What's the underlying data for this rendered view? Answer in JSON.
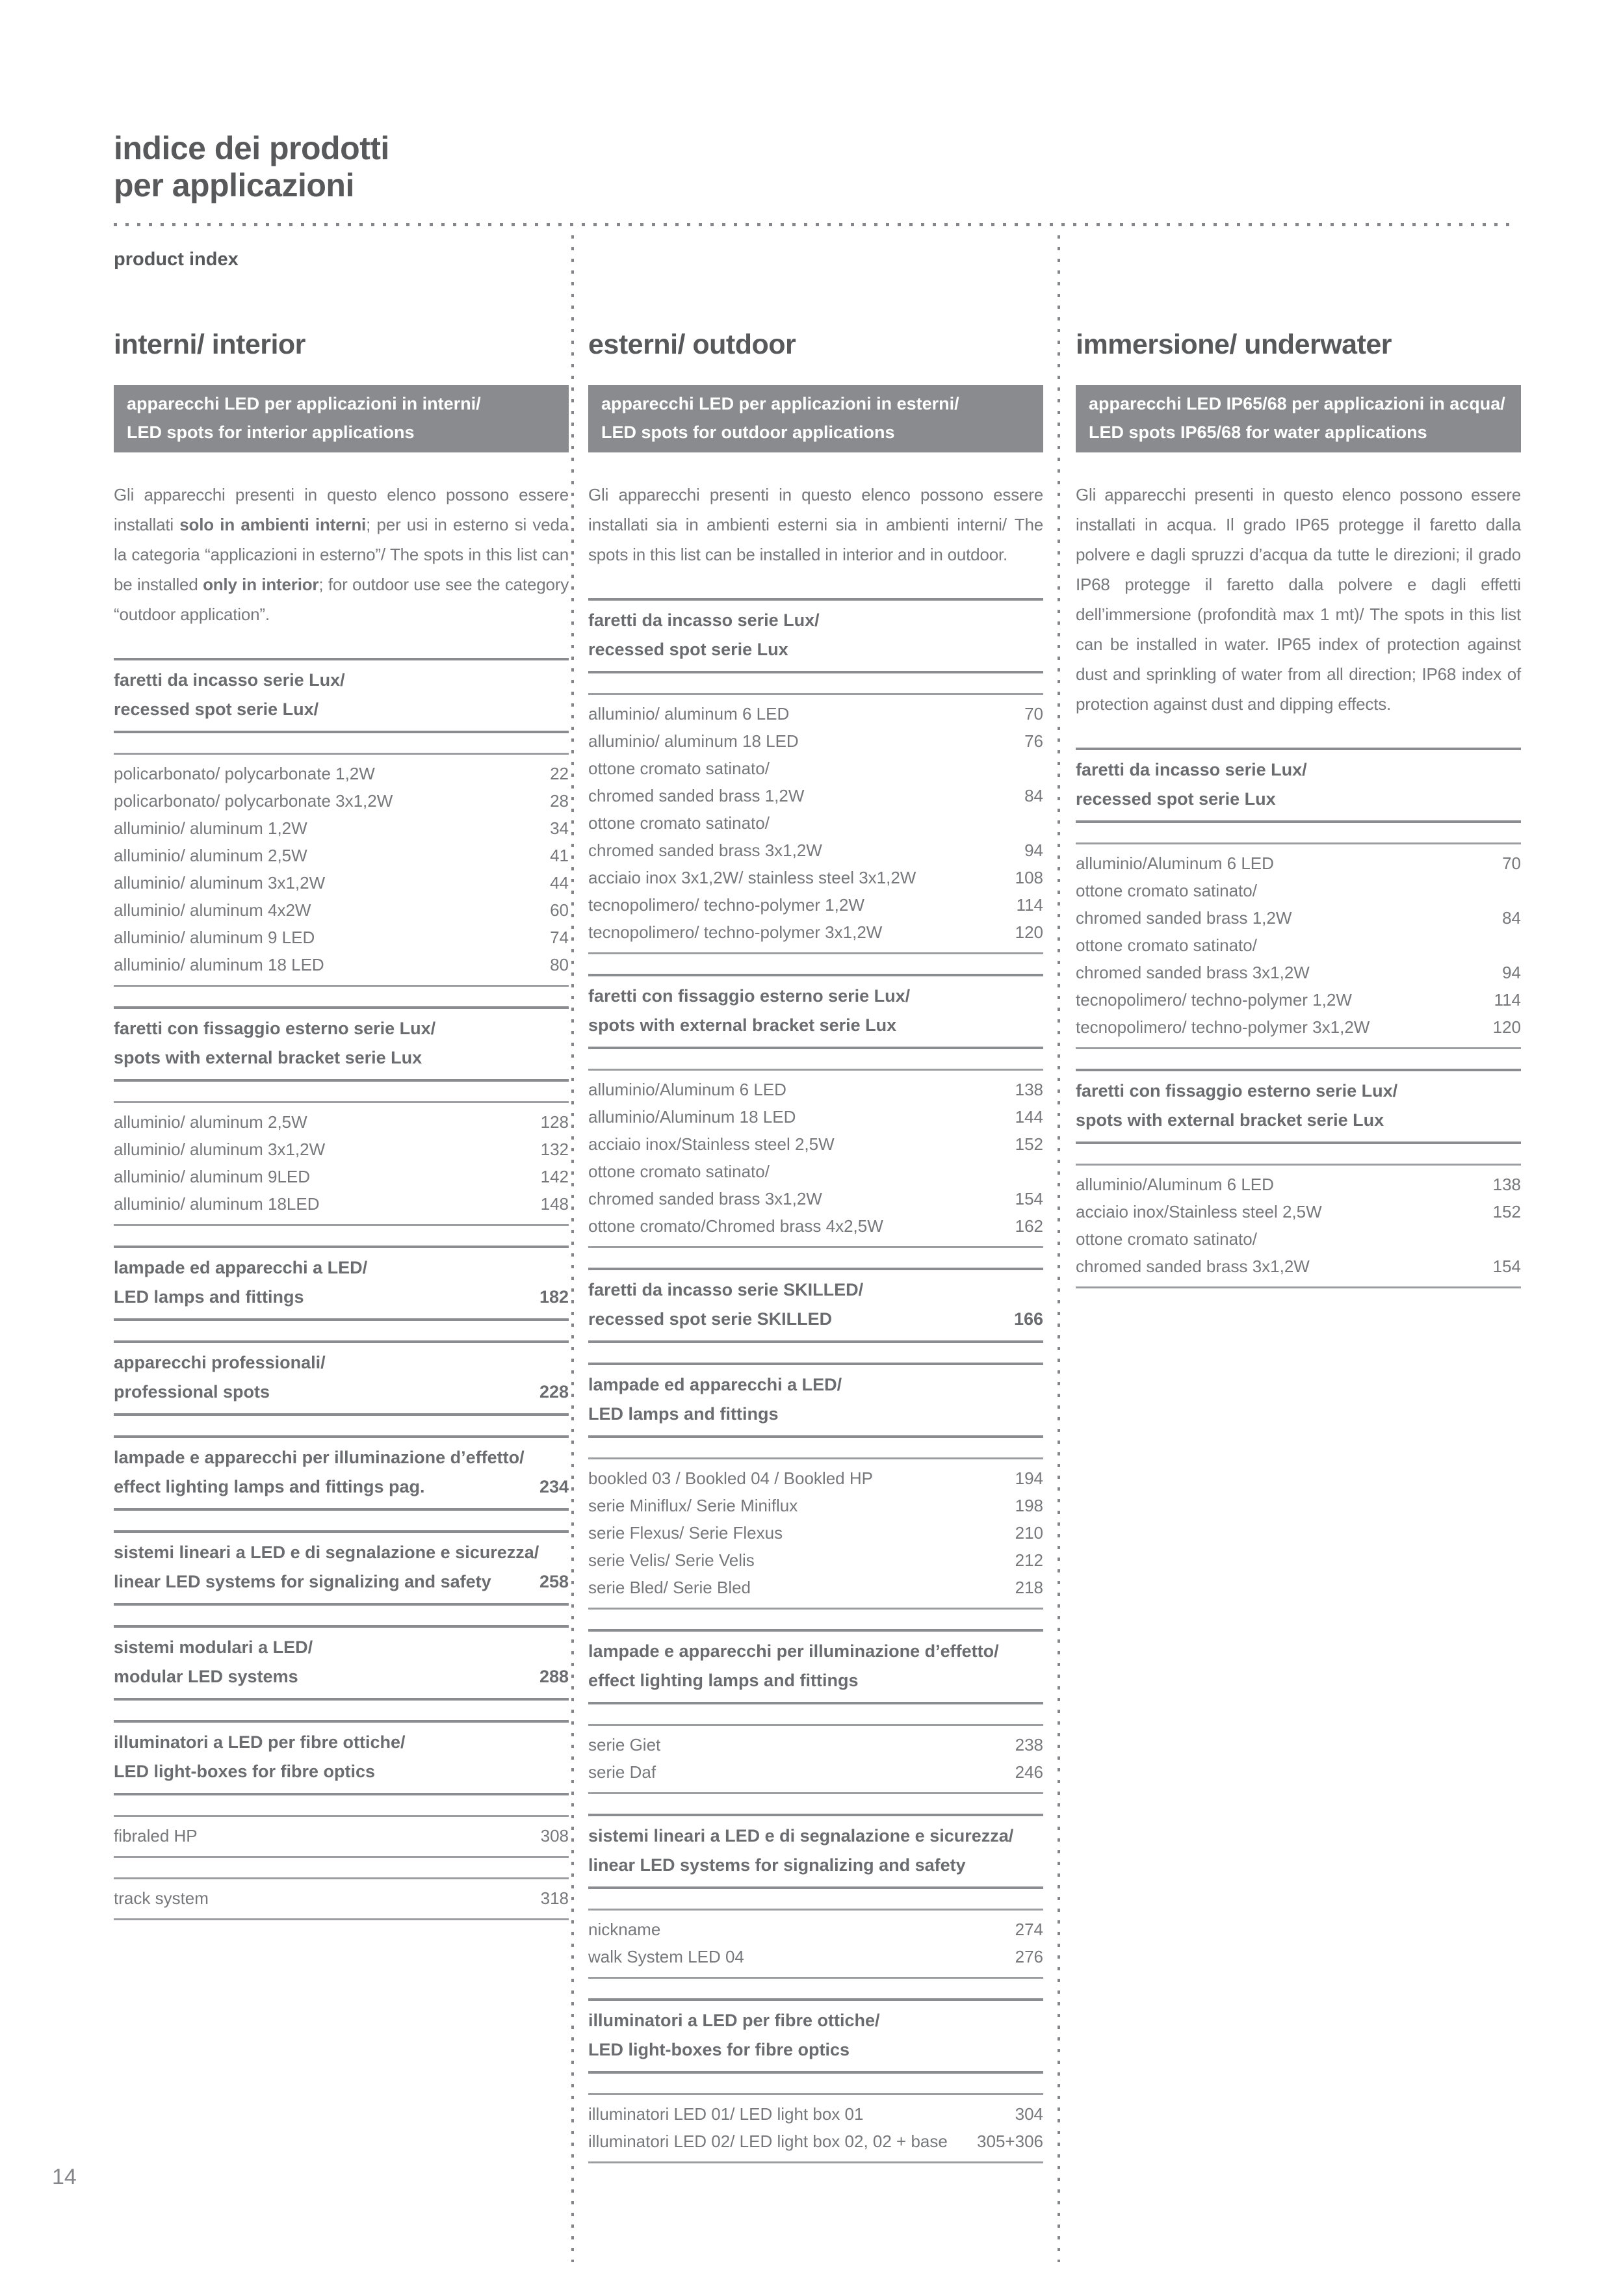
{
  "page": {
    "title_line1": "indice dei prodotti",
    "title_line2": "per applicazioni",
    "subtitle": "product index",
    "page_number": "14"
  },
  "colors": {
    "heading_text": "#58595b",
    "body_text": "#77787b",
    "band_background": "#8a8b8e",
    "band_text": "#ffffff"
  },
  "columns": [
    {
      "id": "interior",
      "title": "interni/ interior",
      "band": [
        "apparecchi LED per applicazioni in interni/",
        "LED spots for interior applications"
      ],
      "intro": [
        {
          "text": "Gli apparecchi presenti in questo elenco possono essere installati "
        },
        {
          "text": "solo in ambienti interni",
          "bold": true
        },
        {
          "text": "; per usi in esterno si veda la categoria “applicazioni in esterno”/ The spots in this list can be installed "
        },
        {
          "text": "only in interior",
          "bold": true
        },
        {
          "text": "; for outdoor use see the category “outdoor application”."
        }
      ],
      "sections": [
        {
          "header": {
            "lines": [
              "faretti da incasso serie Lux/",
              "recessed spot serie Lux/"
            ]
          },
          "items": [
            {
              "lines": [
                "policarbonato/ polycarbonate 1,2W"
              ],
              "page": "22"
            },
            {
              "lines": [
                "policarbonato/ polycarbonate 3x1,2W"
              ],
              "page": "28"
            },
            {
              "lines": [
                "alluminio/ aluminum 1,2W"
              ],
              "page": "34"
            },
            {
              "lines": [
                "alluminio/ aluminum 2,5W"
              ],
              "page": "41"
            },
            {
              "lines": [
                "alluminio/ aluminum 3x1,2W"
              ],
              "page": "44"
            },
            {
              "lines": [
                "alluminio/ aluminum 4x2W"
              ],
              "page": "60"
            },
            {
              "lines": [
                "alluminio/ aluminum 9 LED"
              ],
              "page": "74"
            },
            {
              "lines": [
                "alluminio/ aluminum 18 LED"
              ],
              "page": "80"
            }
          ]
        },
        {
          "header": {
            "lines": [
              "faretti con fissaggio esterno serie Lux/",
              "spots with external bracket serie Lux"
            ]
          },
          "items": [
            {
              "lines": [
                "alluminio/ aluminum 2,5W"
              ],
              "page": "128"
            },
            {
              "lines": [
                "alluminio/ aluminum 3x1,2W"
              ],
              "page": "132"
            },
            {
              "lines": [
                "alluminio/ aluminum 9LED"
              ],
              "page": "142"
            },
            {
              "lines": [
                "alluminio/ aluminum 18LED"
              ],
              "page": "148"
            }
          ]
        },
        {
          "header": {
            "lines": [
              "lampade ed apparecchi a LED/",
              "LED lamps and fittings"
            ],
            "page": "182"
          }
        },
        {
          "header": {
            "lines": [
              "apparecchi professionali/",
              "professional spots"
            ],
            "page": "228"
          }
        },
        {
          "header": {
            "lines": [
              "lampade e apparecchi per illuminazione d’effetto/",
              "effect lighting lamps and fittings pag."
            ],
            "page": "234"
          }
        },
        {
          "header": {
            "lines": [
              "sistemi lineari a LED e di segnalazione e sicurezza/",
              "linear LED systems for signalizing and safety"
            ],
            "page": "258"
          }
        },
        {
          "header": {
            "lines": [
              "sistemi modulari a LED/",
              "modular LED systems"
            ],
            "page": "288"
          }
        },
        {
          "header": {
            "lines": [
              "illuminatori a LED per fibre ottiche/",
              "LED light-boxes for fibre optics"
            ]
          },
          "items": [
            {
              "lines": [
                "fibraled HP"
              ],
              "page": "308"
            }
          ]
        },
        {
          "items": [
            {
              "lines": [
                "track system"
              ],
              "page": "318"
            }
          ]
        }
      ]
    },
    {
      "id": "outdoor",
      "title": "esterni/ outdoor",
      "band": [
        "apparecchi LED per applicazioni in esterni/",
        "LED spots for outdoor applications"
      ],
      "intro": [
        {
          "text": "Gli apparecchi presenti in questo elenco possono essere installati sia in ambienti esterni sia in ambienti interni/ The spots in this list can be installed in interior and in outdoor."
        }
      ],
      "sections": [
        {
          "header": {
            "lines": [
              "faretti da incasso serie Lux/",
              "recessed spot serie Lux"
            ]
          },
          "items": [
            {
              "lines": [
                "alluminio/ aluminum 6 LED"
              ],
              "page": "70"
            },
            {
              "lines": [
                "alluminio/ aluminum 18 LED"
              ],
              "page": "76"
            },
            {
              "lines": [
                "ottone cromato satinato/",
                "chromed sanded brass 1,2W"
              ],
              "page": "84"
            },
            {
              "lines": [
                "ottone cromato satinato/",
                "chromed sanded brass 3x1,2W"
              ],
              "page": "94"
            },
            {
              "lines": [
                "acciaio inox 3x1,2W/ stainless steel 3x1,2W"
              ],
              "page": "108"
            },
            {
              "lines": [
                "tecnopolimero/ techno-polymer 1,2W"
              ],
              "page": "114"
            },
            {
              "lines": [
                "tecnopolimero/ techno-polymer 3x1,2W"
              ],
              "page": "120"
            }
          ]
        },
        {
          "header": {
            "lines": [
              "faretti con fissaggio esterno serie Lux/",
              "spots with external bracket serie Lux"
            ]
          },
          "items": [
            {
              "lines": [
                "alluminio/Aluminum 6 LED"
              ],
              "page": "138"
            },
            {
              "lines": [
                "alluminio/Aluminum 18 LED"
              ],
              "page": "144"
            },
            {
              "lines": [
                "acciaio inox/Stainless steel 2,5W"
              ],
              "page": "152"
            },
            {
              "lines": [
                "ottone cromato satinato/",
                "chromed sanded brass 3x1,2W"
              ],
              "page": "154"
            },
            {
              "lines": [
                "ottone cromato/Chromed brass 4x2,5W"
              ],
              "page": "162"
            }
          ]
        },
        {
          "header": {
            "lines": [
              "faretti da incasso serie SKILLED/",
              "recessed spot serie SKILLED"
            ],
            "page": "166"
          }
        },
        {
          "header": {
            "lines": [
              "lampade ed apparecchi a LED/",
              "LED lamps and fittings"
            ]
          },
          "items": [
            {
              "lines": [
                "bookled 03 / Bookled 04 / Bookled HP"
              ],
              "page": "194"
            },
            {
              "lines": [
                "serie Miniflux/ Serie Miniflux"
              ],
              "page": "198"
            },
            {
              "lines": [
                "serie Flexus/ Serie Flexus"
              ],
              "page": "210"
            },
            {
              "lines": [
                "serie Velis/ Serie Velis"
              ],
              "page": "212"
            },
            {
              "lines": [
                "serie Bled/ Serie Bled"
              ],
              "page": "218"
            }
          ]
        },
        {
          "header": {
            "lines": [
              "lampade e apparecchi per illuminazione d’effetto/",
              "effect lighting lamps and fittings"
            ]
          },
          "items": [
            {
              "lines": [
                "serie Giet"
              ],
              "page": "238"
            },
            {
              "lines": [
                "serie Daf"
              ],
              "page": "246"
            }
          ]
        },
        {
          "header": {
            "lines": [
              "sistemi lineari a LED e di segnalazione e sicurezza/",
              "linear LED systems for signalizing and safety"
            ]
          },
          "items": [
            {
              "lines": [
                "nickname"
              ],
              "page": "274"
            },
            {
              "lines": [
                "walk System LED 04"
              ],
              "page": "276"
            }
          ]
        },
        {
          "header": {
            "lines": [
              "illuminatori a LED per fibre ottiche/",
              "LED light-boxes for fibre optics"
            ]
          },
          "items": [
            {
              "lines": [
                "illuminatori LED 01/ LED light box 01"
              ],
              "page": "304"
            },
            {
              "lines": [
                "illuminatori LED 02/ LED light box 02, 02 + base"
              ],
              "page": "305+306"
            }
          ]
        }
      ]
    },
    {
      "id": "underwater",
      "title": "immersione/ underwater",
      "band": [
        "apparecchi LED IP65/68 per applicazioni in acqua/",
        "LED spots IP65/68 for water applications"
      ],
      "intro": [
        {
          "text": "Gli apparecchi presenti in questo elenco possono essere installati in acqua. Il grado IP65 protegge il faretto dalla polvere e dagli spruzzi d’acqua da tutte le direzioni; il grado IP68 protegge il faretto dalla polvere e dagli effetti dell’immersione (profondità max 1 mt)/ The spots in this list can be installed in water. IP65 index of protection against dust and sprinkling of water from all direction; IP68 index of protection against dust and dipping effects."
        }
      ],
      "sections": [
        {
          "header": {
            "lines": [
              "faretti da incasso serie Lux/",
              "recessed spot serie Lux"
            ]
          },
          "items": [
            {
              "lines": [
                "alluminio/Aluminum 6 LED"
              ],
              "page": "70"
            },
            {
              "lines": [
                "ottone cromato satinato/",
                "chromed sanded brass 1,2W"
              ],
              "page": "84"
            },
            {
              "lines": [
                "ottone cromato satinato/",
                "chromed sanded brass 3x1,2W"
              ],
              "page": "94"
            },
            {
              "lines": [
                "tecnopolimero/ techno-polymer 1,2W"
              ],
              "page": "114"
            },
            {
              "lines": [
                "tecnopolimero/ techno-polymer 3x1,2W"
              ],
              "page": "120"
            }
          ]
        },
        {
          "header": {
            "lines": [
              "faretti con fissaggio esterno serie Lux/",
              "spots with external bracket serie Lux"
            ]
          },
          "items": [
            {
              "lines": [
                "alluminio/Aluminum 6 LED"
              ],
              "page": "138"
            },
            {
              "lines": [
                "acciaio inox/Stainless steel 2,5W"
              ],
              "page": "152"
            },
            {
              "lines": [
                "ottone cromato satinato/",
                "chromed sanded brass 3x1,2W"
              ],
              "page": "154"
            }
          ]
        }
      ]
    }
  ]
}
